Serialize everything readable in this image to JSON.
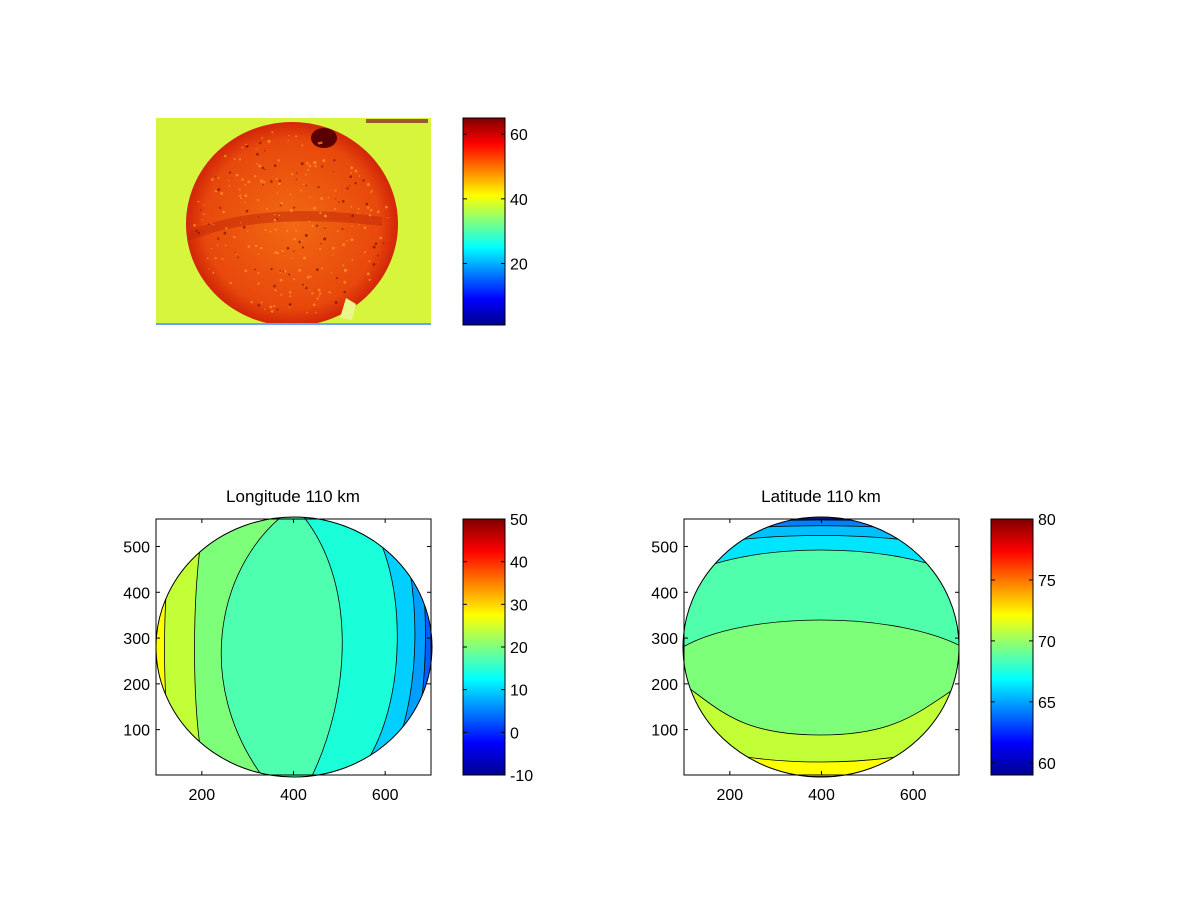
{
  "chart_data": [
    {
      "type": "heatmap",
      "title": "",
      "xlabel": "",
      "ylabel": "",
      "image": "all-sky camera frame: bright disk (~55-65) on ~40 background, dark spot near top right",
      "colorbar": {
        "range": [
          1,
          65
        ],
        "ticks": [
          20,
          40,
          60
        ],
        "colormap": "jet"
      }
    },
    {
      "type": "heatmap",
      "title": "Longitude 110 km",
      "xlabel": "",
      "ylabel": "",
      "xlim": [
        100,
        700
      ],
      "ylim": [
        1,
        560
      ],
      "xticks": [
        200,
        400,
        600
      ],
      "yticks": [
        100,
        200,
        300,
        400,
        500
      ],
      "grid": false,
      "contour_levels": [
        -10,
        -5,
        0,
        5,
        10,
        15,
        20,
        25,
        30,
        35
      ],
      "colorbar": {
        "range": [
          -10,
          50
        ],
        "ticks": [
          -10,
          0,
          10,
          20,
          30,
          40,
          50
        ],
        "colormap": "jet"
      }
    },
    {
      "type": "heatmap",
      "title": "Latitude 110 km",
      "xlabel": "",
      "ylabel": "",
      "xlim": [
        100,
        700
      ],
      "ylim": [
        1,
        560
      ],
      "xticks": [
        200,
        400,
        600
      ],
      "yticks": [
        100,
        200,
        300,
        400,
        500
      ],
      "grid": false,
      "contour_levels": [
        60,
        62,
        64,
        66,
        68,
        70,
        72,
        74,
        76
      ],
      "colorbar": {
        "range": [
          59,
          80
        ],
        "ticks": [
          60,
          65,
          70,
          75,
          80
        ],
        "colormap": "jet"
      }
    }
  ]
}
